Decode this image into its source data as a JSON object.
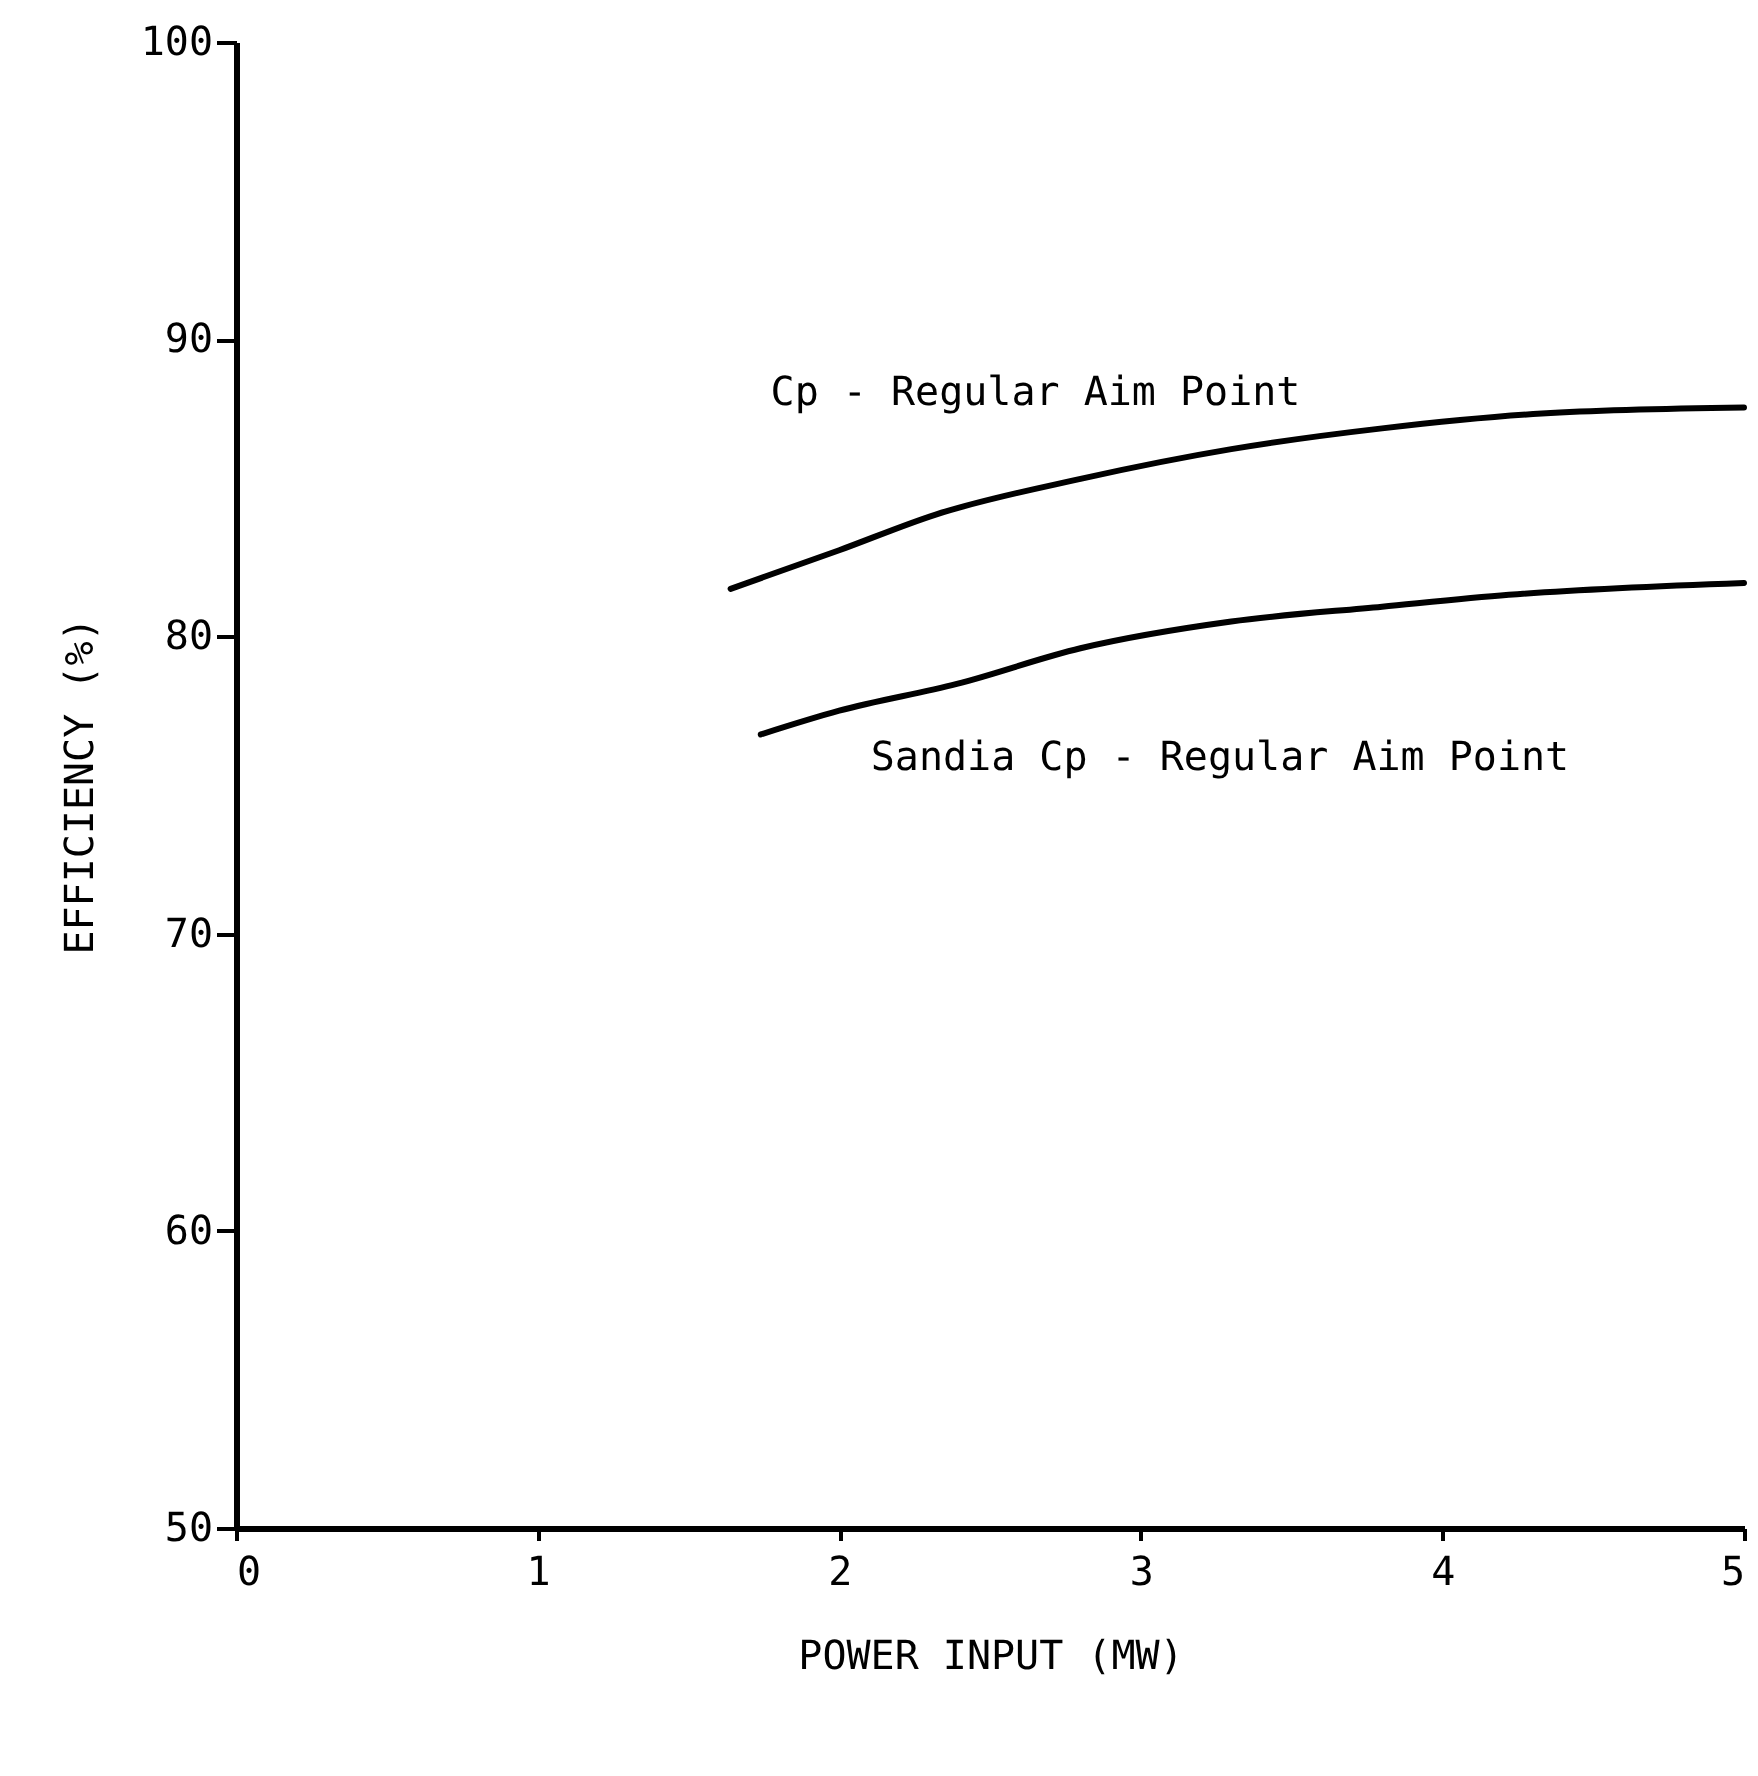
{
  "chart_data": {
    "type": "line",
    "xlabel": "POWER INPUT (MW)",
    "ylabel": "EFFICIENCY (%)",
    "xlim": [
      0,
      5
    ],
    "xticks": [
      0,
      1,
      2,
      3,
      4,
      5
    ],
    "ylim": [
      50,
      100
    ],
    "yticks": [
      50,
      60,
      70,
      80,
      90,
      100
    ],
    "grid": false,
    "marker": "none",
    "line_style": "solid",
    "series": [
      {
        "name": "Cp - Regular Aim Point",
        "color": "#000000",
        "x": [
          1.64,
          2.0,
          2.32,
          2.8,
          3.3,
          3.8,
          4.33,
          5.0
        ],
        "values": [
          81.6,
          82.9,
          84.1,
          85.3,
          86.3,
          87.0,
          87.5,
          87.7
        ]
      },
      {
        "name": "Sandia Cp - Regular Aim Point",
        "color": "#000000",
        "x": [
          1.74,
          2.0,
          2.39,
          2.8,
          3.3,
          3.8,
          4.22,
          5.0
        ],
        "values": [
          76.7,
          77.5,
          78.4,
          79.6,
          80.5,
          81.0,
          81.4,
          81.8
        ]
      }
    ]
  }
}
